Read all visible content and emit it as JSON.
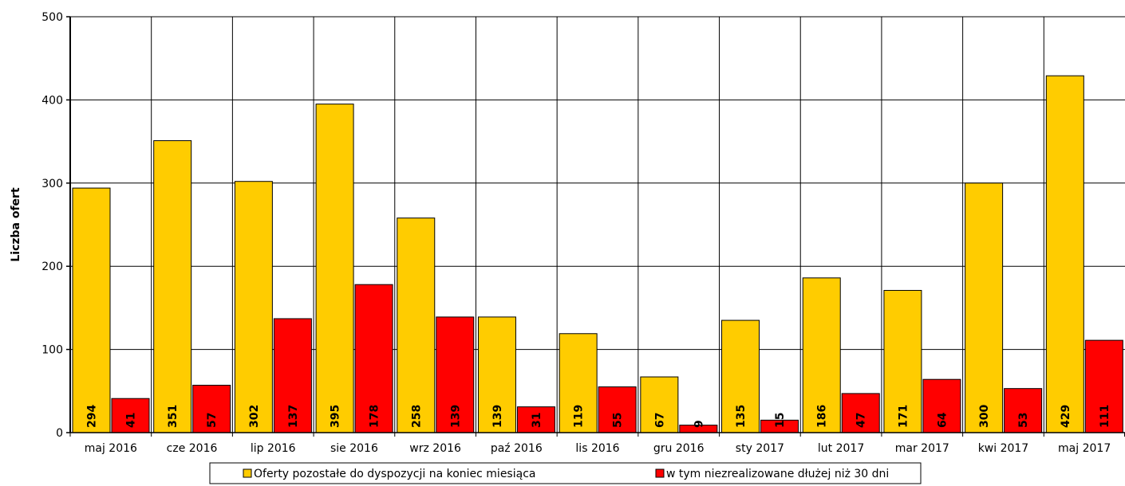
{
  "chart_data": {
    "type": "bar",
    "title": "",
    "xlabel": "",
    "ylabel": "Liczba ofert",
    "ylim": [
      0,
      500
    ],
    "yticks": [
      0,
      100,
      200,
      300,
      400,
      500
    ],
    "grid": true,
    "legend_position": "bottom",
    "categories": [
      "maj 2016",
      "cze 2016",
      "lip 2016",
      "sie 2016",
      "wrz 2016",
      "paź 2016",
      "lis 2016",
      "gru 2016",
      "sty 2017",
      "lut 2017",
      "mar 2017",
      "kwi 2017",
      "maj 2017"
    ],
    "series": [
      {
        "name": "Oferty pozostałe do dyspozycji na koniec miesiąca",
        "color": "#FFCC00",
        "values": [
          294,
          351,
          302,
          395,
          258,
          139,
          119,
          67,
          135,
          186,
          171,
          300,
          429
        ]
      },
      {
        "name": "w tym niezrealizowane dłużej niż 30 dni",
        "color": "#FF0000",
        "values": [
          41,
          57,
          137,
          178,
          139,
          31,
          55,
          9,
          15,
          47,
          64,
          53,
          111
        ]
      }
    ]
  }
}
